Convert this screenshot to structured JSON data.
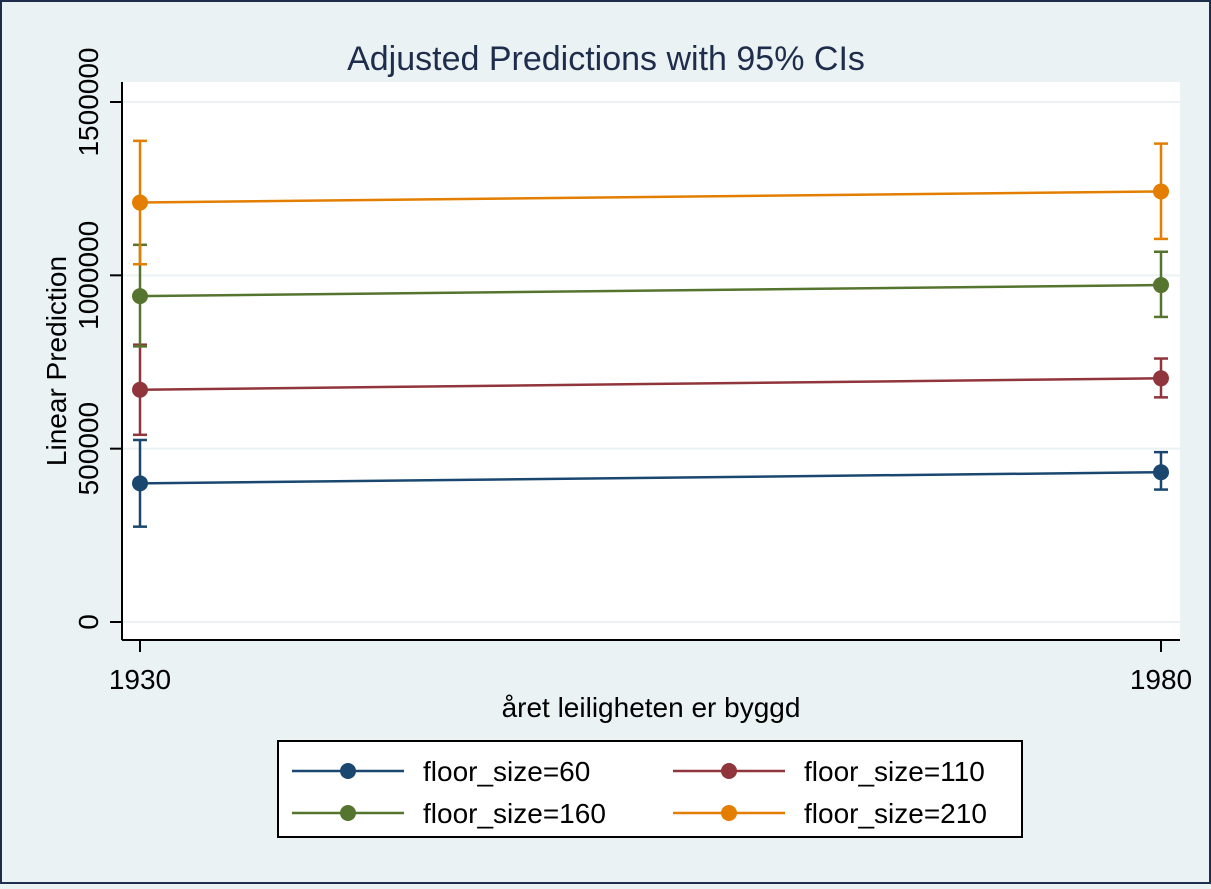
{
  "chart_data": {
    "type": "line",
    "title": "Adjusted Predictions with 95% CIs",
    "xlabel": "året leiligheten er byggd",
    "ylabel": "Linear Prediction",
    "x": [
      1930,
      1980
    ],
    "x_tick_labels": [
      "1930",
      "1980"
    ],
    "y_ticks": [
      0,
      500000,
      1000000,
      1500000
    ],
    "y_tick_labels": [
      "0",
      "500000",
      "1000000",
      "1500000"
    ],
    "ylim": [
      0,
      1500000
    ],
    "grid": true,
    "legend_position": "bottom",
    "series": [
      {
        "name": "floor_size=60",
        "color": "#1A476F",
        "values": [
          400000,
          432000
        ],
        "ci_low": [
          275000,
          382000
        ],
        "ci_high": [
          525000,
          490000
        ]
      },
      {
        "name": "floor_size=110",
        "color": "#90353B",
        "values": [
          670000,
          703000
        ],
        "ci_low": [
          540000,
          648000
        ],
        "ci_high": [
          800000,
          760000
        ]
      },
      {
        "name": "floor_size=160",
        "color": "#55752F",
        "values": [
          940000,
          972000
        ],
        "ci_low": [
          795000,
          880000
        ],
        "ci_high": [
          1088000,
          1068000
        ]
      },
      {
        "name": "floor_size=210",
        "color": "#E37E00",
        "values": [
          1210000,
          1242000
        ],
        "ci_low": [
          1032000,
          1105000
        ],
        "ci_high": [
          1388000,
          1380000
        ]
      }
    ]
  },
  "colors": {
    "background": "#EAF2F3",
    "plot_area": "#FFFFFF",
    "gridline": "#EAF2F3",
    "axis": "#000000",
    "title": "#1E2D4C",
    "legend_background": "#FFFFFF"
  }
}
